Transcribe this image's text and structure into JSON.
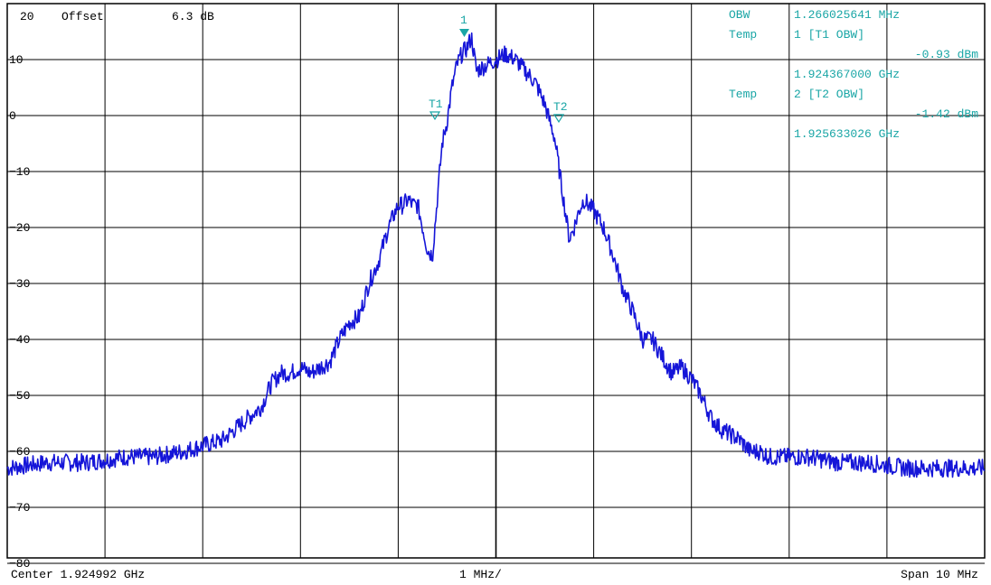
{
  "header": {
    "ref_level": "20",
    "offset_label": "Offset",
    "offset_value": "6.3 dB"
  },
  "readout": {
    "obw_label": "OBW",
    "obw_value": "1.266025641 MHz",
    "temp1_label": "Temp",
    "temp1_ref": "1 [T1 OBW]",
    "temp1_level": "-0.93 dBm",
    "temp1_freq": "1.924367000 GHz",
    "temp2_label": "Temp",
    "temp2_ref": "2 [T2 OBW]",
    "temp2_level": "-1.42 dBm",
    "temp2_freq": "1.925633026 GHz"
  },
  "footer": {
    "center": "Center 1.924992 GHz",
    "div": "1 MHz/",
    "span": "Span 10 MHz"
  },
  "markers": {
    "m1": "1",
    "t1": "T1",
    "t2": "T2"
  },
  "chart_data": {
    "type": "line",
    "ylim": [
      -85,
      20
    ],
    "xlim": [
      -5,
      5
    ],
    "y_ticks": [
      10,
      0,
      -10,
      -20,
      -30,
      -40,
      -50,
      -60,
      -70,
      -80
    ],
    "y_tick_labels": [
      "10",
      "0",
      "−10",
      "−20",
      "−30",
      "−40",
      "−50",
      "−60",
      "−70",
      "−80"
    ],
    "x_divisions": 10,
    "grid": true,
    "colors": {
      "trace": "#1515d8",
      "marker": "#1aa6a6",
      "grid": "#000000"
    },
    "series": [
      {
        "x": [
          -5.0,
          -4.6,
          -4.2,
          -3.8,
          -3.5,
          -3.2,
          -3.0,
          -2.8,
          -2.6,
          -2.4,
          -2.3,
          -2.2,
          -2.1,
          -2.0,
          -1.9,
          -1.8,
          -1.7,
          -1.6,
          -1.5,
          -1.4,
          -1.3,
          -1.2,
          -1.1,
          -1.0,
          -0.95,
          -0.9,
          -0.85,
          -0.8,
          -0.7,
          -0.65,
          -0.6,
          -0.55,
          -0.5,
          -0.45,
          -0.4,
          -0.35,
          -0.3,
          -0.25,
          -0.2,
          -0.1,
          0.0,
          0.1,
          0.2,
          0.3,
          0.4,
          0.5,
          0.55,
          0.6,
          0.65,
          0.7,
          0.75,
          0.8,
          0.85,
          0.9,
          1.0,
          1.1,
          1.2,
          1.3,
          1.4,
          1.5,
          1.6,
          1.7,
          1.8,
          1.9,
          2.0,
          2.1,
          2.2,
          2.3,
          2.4,
          2.5,
          2.6,
          2.7,
          2.8,
          3.0,
          3.2,
          3.5,
          3.8,
          4.2,
          4.6,
          5.0
        ],
        "y": [
          -63,
          -62,
          -62,
          -61,
          -61,
          -60,
          -59,
          -58,
          -55,
          -52,
          -48,
          -46,
          -46,
          -45,
          -46,
          -45,
          -44,
          -40,
          -37,
          -36,
          -30,
          -26,
          -20,
          -16,
          -16,
          -15,
          -16,
          -16,
          -24,
          -25,
          -15,
          -5,
          -1,
          5,
          9,
          11,
          12,
          14,
          8,
          9,
          10,
          11,
          10,
          8,
          6,
          2,
          -1,
          -4,
          -10,
          -16,
          -22,
          -20,
          -17,
          -15,
          -17,
          -20,
          -25,
          -31,
          -35,
          -40,
          -40,
          -43,
          -46,
          -45,
          -47,
          -50,
          -54,
          -56,
          -57,
          -58,
          -60,
          -60,
          -61,
          -61,
          -61,
          -62,
          -62,
          -63,
          -63,
          -63
        ]
      }
    ]
  }
}
